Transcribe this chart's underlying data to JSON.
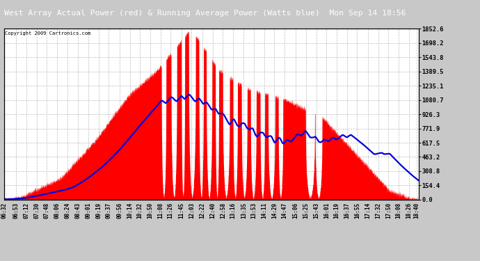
{
  "title": "West Array Actual Power (red) & Running Average Power (Watts blue)  Mon Sep 14 18:56",
  "copyright": "Copyright 2009 Cartronics.com",
  "yticks": [
    0.0,
    154.4,
    308.8,
    463.2,
    617.5,
    771.9,
    926.3,
    1080.7,
    1235.1,
    1389.5,
    1543.8,
    1698.2,
    1852.6
  ],
  "ymax": 1852.6,
  "actual_color": "#ff0000",
  "avg_color": "#0000dd",
  "title_bg": "#000080",
  "title_fg": "#ffffff",
  "fig_bg": "#c8c8c8",
  "plot_bg": "#ffffff",
  "grid_color": "#bbbbbb",
  "xtick_labels": [
    "06:32",
    "06:53",
    "07:12",
    "07:30",
    "07:48",
    "08:06",
    "08:24",
    "08:43",
    "09:01",
    "09:19",
    "09:37",
    "09:56",
    "10:14",
    "10:32",
    "10:50",
    "11:08",
    "11:26",
    "11:45",
    "12:03",
    "12:22",
    "12:40",
    "12:58",
    "13:16",
    "13:35",
    "13:53",
    "14:11",
    "14:29",
    "14:47",
    "15:06",
    "15:25",
    "15:43",
    "16:01",
    "16:19",
    "16:37",
    "16:55",
    "17:14",
    "17:32",
    "17:50",
    "18:08",
    "18:26",
    "18:40"
  ]
}
